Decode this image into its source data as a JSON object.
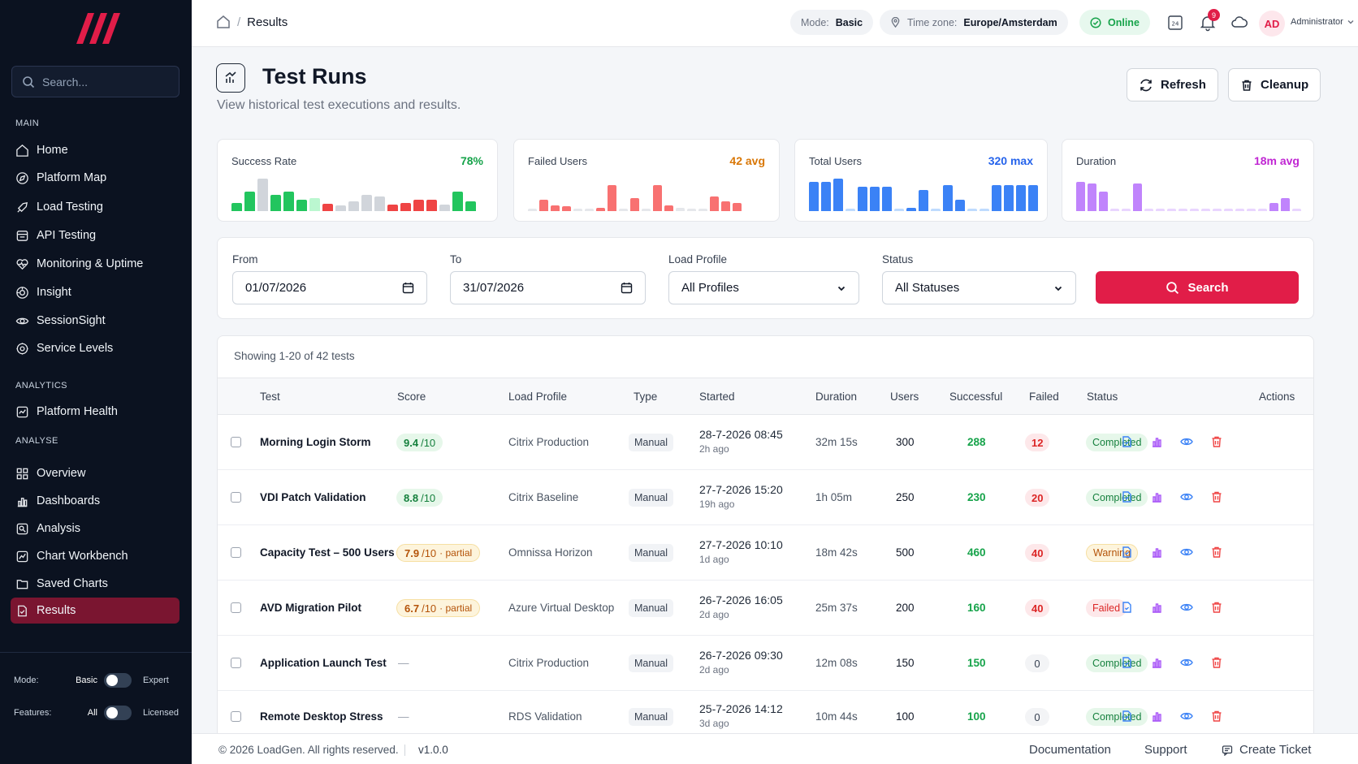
{
  "sidebar": {
    "search_placeholder": "Search...",
    "sections": {
      "main": "MAIN",
      "analytics": "ANALYTICS",
      "analyse": "ANALYSE"
    },
    "main_items": [
      "Home",
      "Platform Map",
      "Load Testing",
      "API Testing",
      "Monitoring & Uptime",
      "Insight",
      "SessionSight",
      "Service Levels"
    ],
    "analytics_items": [
      "Platform Health"
    ],
    "analyse_items": [
      "Overview",
      "Dashboards",
      "Analysis",
      "Chart Workbench",
      "Saved Charts",
      "Results"
    ],
    "active_item": "Results",
    "mode": {
      "label": "Mode:",
      "left": "Basic",
      "right": "Expert"
    },
    "features": {
      "label": "Features:",
      "left": "All",
      "right": "Licensed"
    },
    "accent_active": "#7a1530"
  },
  "topbar": {
    "breadcrumb": "Results",
    "mode_label": "Mode:",
    "mode_value": "Basic",
    "tz_label": "Time zone:",
    "tz_value": "Europe/Amsterdam",
    "status": "Online",
    "notifications": "9",
    "avatar": "AD",
    "user": "Administrator"
  },
  "page": {
    "title": "Test Runs",
    "subtitle": "View historical test executions and results.",
    "refresh": "Refresh",
    "cleanup": "Cleanup"
  },
  "stats": [
    {
      "title": "Success Rate",
      "value": "78%",
      "color": "#16a34a"
    },
    {
      "title": "Failed Users",
      "value": "42 avg",
      "color": "#d97706"
    },
    {
      "title": "Total Users",
      "value": "320 max",
      "color": "#2563eb"
    },
    {
      "title": "Duration",
      "value": "18m avg",
      "color": "#c026d3"
    }
  ],
  "filters": {
    "from_label": "From",
    "from_value": "01/07/2026",
    "to_label": "To",
    "to_value": "31/07/2026",
    "profile_label": "Load Profile",
    "profile_value": "All Profiles",
    "status_label": "Status",
    "status_value": "All Statuses",
    "search": "Search"
  },
  "table": {
    "showing": "Showing 1-20 of 42 tests",
    "headers": [
      "Test",
      "Score",
      "Load Profile",
      "Type",
      "Started",
      "Duration",
      "Users",
      "Successful",
      "Failed",
      "Status",
      "Actions"
    ],
    "rows": [
      {
        "name": "Morning Login Storm",
        "score": "9.4",
        "den": "/10",
        "partial": "",
        "profile": "Citrix Production",
        "type": "Manual",
        "started": "28-7-2026 08:45",
        "ago": "2h ago",
        "duration": "32m 15s",
        "users": "300",
        "successful": "288",
        "failed": "12",
        "status": "Completed"
      },
      {
        "name": "VDI Patch Validation",
        "score": "8.8",
        "den": "/10",
        "partial": "",
        "profile": "Citrix Baseline",
        "type": "Manual",
        "started": "27-7-2026 15:20",
        "ago": "19h ago",
        "duration": "1h 05m",
        "users": "250",
        "successful": "230",
        "failed": "20",
        "status": "Completed"
      },
      {
        "name": "Capacity Test – 500 Users",
        "score": "7.9",
        "den": "/10",
        "partial": "· partial",
        "profile": "Omnissa Horizon",
        "type": "Manual",
        "started": "27-7-2026 10:10",
        "ago": "1d ago",
        "duration": "18m 42s",
        "users": "500",
        "successful": "460",
        "failed": "40",
        "status": "Warning"
      },
      {
        "name": "AVD Migration Pilot",
        "score": "6.7",
        "den": "/10",
        "partial": "· partial",
        "profile": "Azure Virtual Desktop",
        "type": "Manual",
        "started": "26-7-2026 16:05",
        "ago": "2d ago",
        "duration": "25m 37s",
        "users": "200",
        "successful": "160",
        "failed": "40",
        "status": "Failed"
      },
      {
        "name": "Application Launch Test",
        "score": "—",
        "den": "",
        "partial": "",
        "profile": "Citrix Production",
        "type": "Manual",
        "started": "26-7-2026 09:30",
        "ago": "2d ago",
        "duration": "12m 08s",
        "users": "150",
        "successful": "150",
        "failed": "0",
        "status": "Completed"
      },
      {
        "name": "Remote Desktop Stress",
        "score": "—",
        "den": "",
        "partial": "",
        "profile": "RDS Validation",
        "type": "Manual",
        "started": "25-7-2026 14:12",
        "ago": "3d ago",
        "duration": "10m 44s",
        "users": "100",
        "successful": "100",
        "failed": "0",
        "status": "Completed"
      }
    ]
  },
  "footer": {
    "copyright": "© 2026 LoadGen. All rights reserved.",
    "version": "v1.0.0",
    "documentation": "Documentation",
    "support": "Support",
    "ticket": "Create Ticket"
  }
}
